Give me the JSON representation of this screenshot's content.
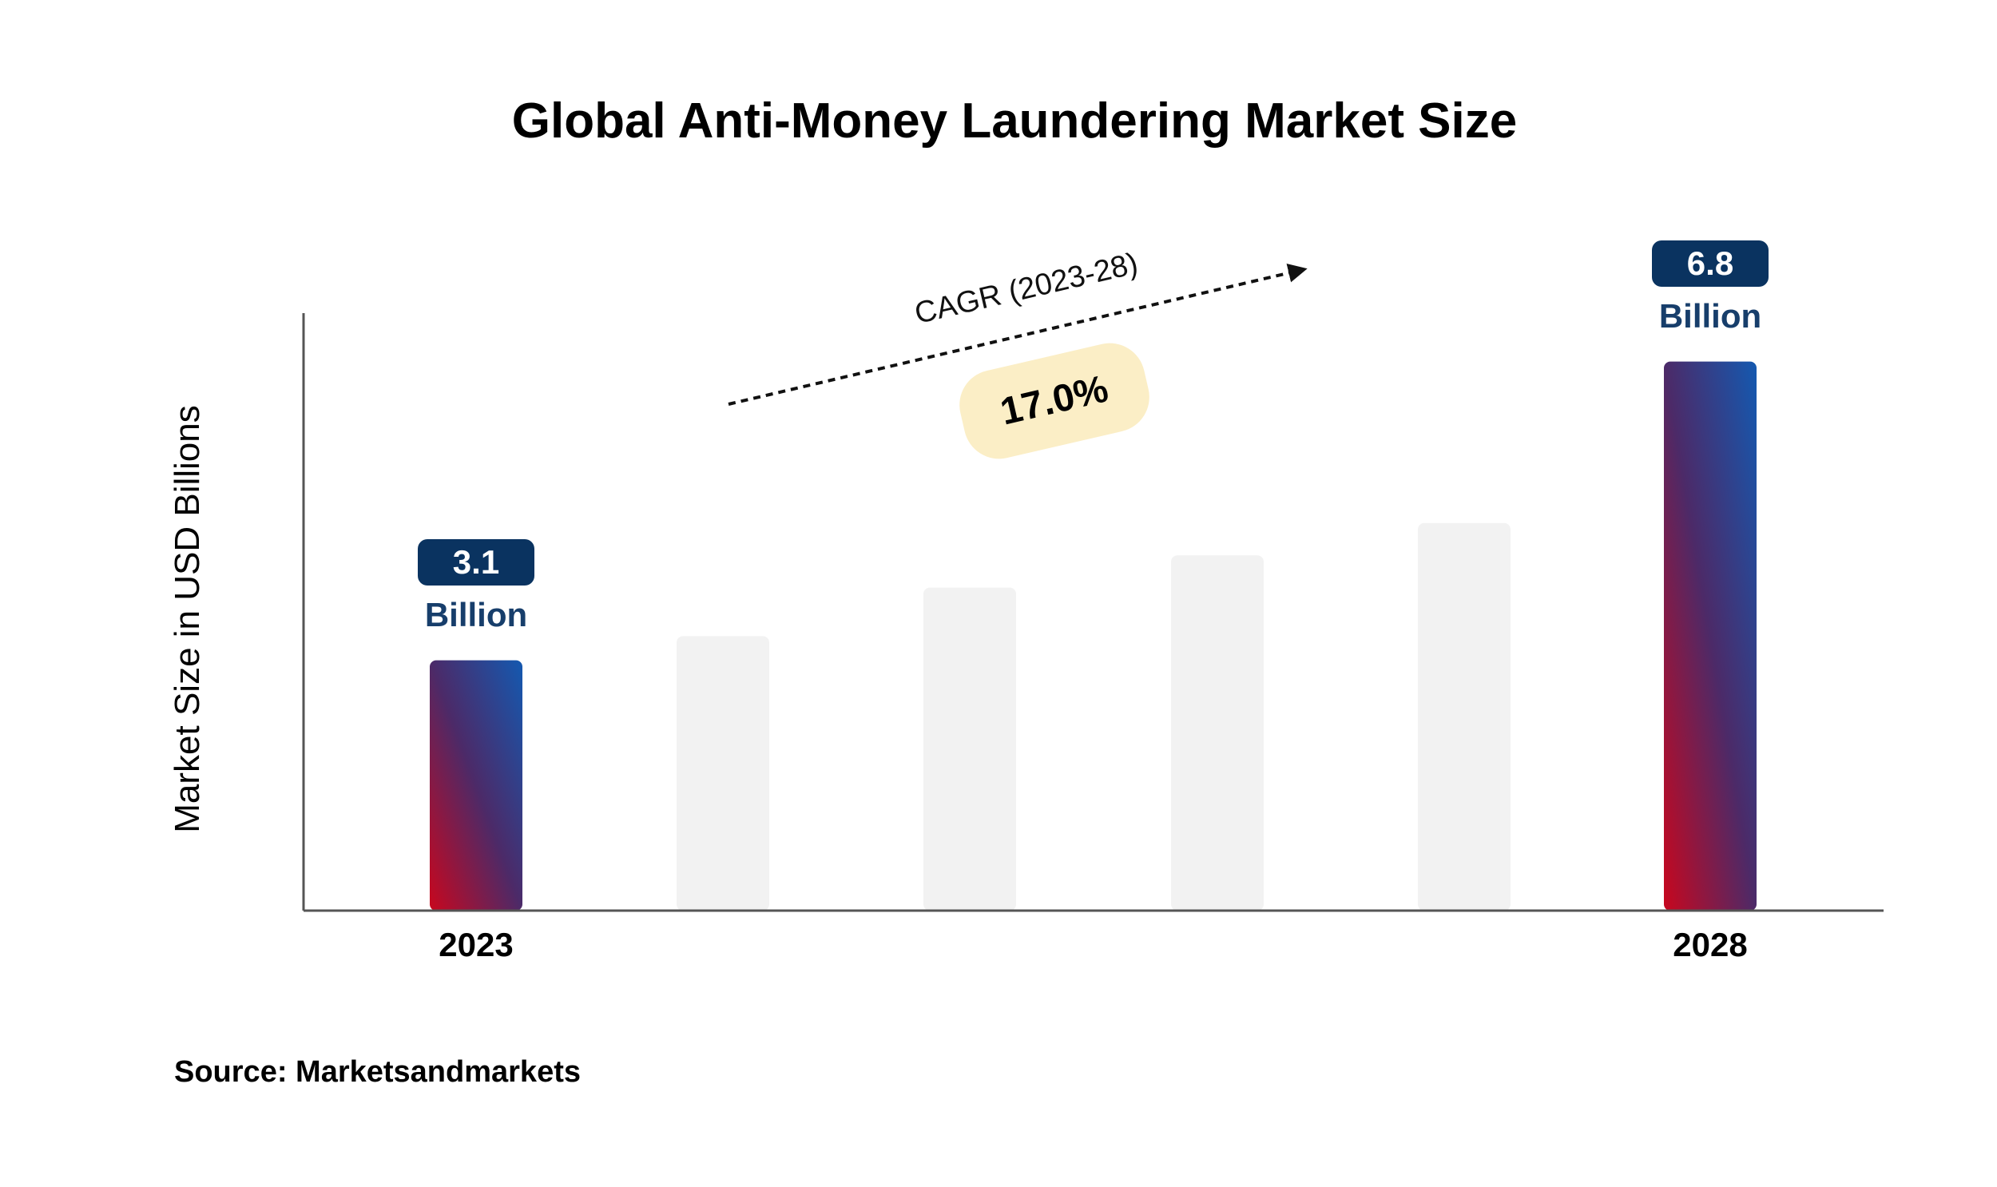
{
  "chart_data": {
    "type": "bar",
    "title": "Global Anti-Money Laundering Market Size",
    "ylabel": "Market Size in USD Billions",
    "xlabel": "",
    "categories": [
      "2023",
      "",
      "",
      "",
      "",
      "2028"
    ],
    "values": [
      3.1,
      3.4,
      4.0,
      4.4,
      4.8,
      6.8
    ],
    "labeled": [
      true,
      false,
      false,
      false,
      false,
      true
    ],
    "unit": "Billion",
    "ylim": [
      0,
      7.4
    ],
    "cagr": {
      "label": "CAGR (2023-28)",
      "value": "17.0%"
    },
    "source": "Source: Marketsandmarkets",
    "colors": {
      "bar_gradient_bottom": "#c8071e",
      "bar_gradient_middle": "#4c2a68",
      "bar_gradient_top": "#1459b0",
      "placeholder_bar": "#f2f2f2",
      "badge": "#0a3360",
      "unit_text": "#173e6b",
      "cagr_pill": "#fbeec6",
      "axis": "#555555"
    }
  }
}
